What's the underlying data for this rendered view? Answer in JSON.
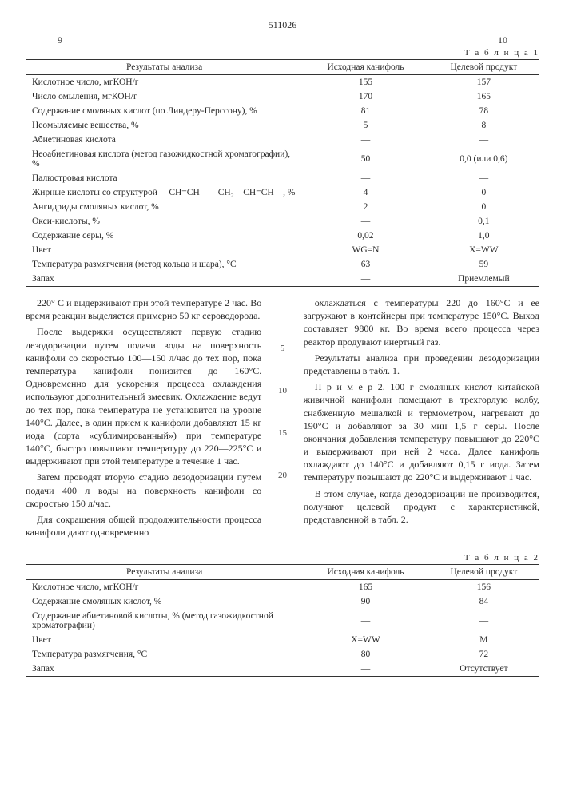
{
  "header": {
    "doc_number": "511026",
    "left_mark": "9",
    "right_mark": "10"
  },
  "table1": {
    "title": "Т а б л и ц а 1",
    "columns": [
      "Результаты анализа",
      "Исходная канифоль",
      "Целевой продукт"
    ],
    "rows": [
      [
        "Кислотное число, мгКОН/г",
        "155",
        "157"
      ],
      [
        "Число омыления, мгКОН/г",
        "170",
        "165"
      ],
      [
        "Содержание смоляных кислот (по Линдеру-Перссону), %",
        "81",
        "78"
      ],
      [
        "Неомыляемые вещества, %",
        "5",
        "8"
      ],
      [
        "Абиетиновая кислота",
        "—",
        "—"
      ],
      [
        "Неоабиетиновая кислота (метод газожидкостной хроматографии), %",
        "50",
        "0,0 (или 0,6)"
      ],
      [
        "Палюстровая кислота",
        "—",
        "—"
      ],
      [
        "Жирные кислоты со структурой —CH=CH——CH₂—CH=CH—, %",
        "4",
        "0"
      ],
      [
        "Ангидриды смоляных кислот, %",
        "2",
        "0"
      ],
      [
        "Окси-кислоты, %",
        "—",
        "0,1"
      ],
      [
        "Содержание серы, %",
        "0,02",
        "1,0"
      ],
      [
        "Цвет",
        "WG=N",
        "X=WW"
      ],
      [
        "Температура размягчения (метод кольца и шара), °С",
        "63",
        "59"
      ],
      [
        "Запах",
        "—",
        "Приемлемый"
      ]
    ]
  },
  "line_nums": [
    "5",
    "10",
    "15",
    "20"
  ],
  "left_col": {
    "p1": "220° С и выдерживают при этой температуре 2 час. Во время реакции выделяется примерно 50 кг сероводорода.",
    "p2": "После выдержки осуществляют первую стадию дезодоризации путем подачи воды на поверхность канифоли со скоростью 100—150 л/час до тех пор, пока температура канифоли понизится до 160°С. Одновременно для ускорения процесса охлаждения используют дополнительный змеевик. Охлаждение ведут до тех пор, пока температура не установится на уровне 140°С. Далее, в один прием к канифоли добавляют 15 кг иода (сорта «сублимированный») при температуре 140°С, быстро повышают температуру до 220—225°С и выдерживают при этой температуре в течение 1 час.",
    "p3": "Затем проводят вторую стадию дезодоризации путем подачи 400 л воды на поверхность канифоли со скоростью 150 л/час.",
    "p4": "Для сокращения общей продолжительности процесса канифоли дают одновременно"
  },
  "right_col": {
    "p1": "охлаждаться с температуры 220 до 160°С и ее загружают в контейнеры при температуре 150°С. Выход составляет 9800 кг. Во время всего процесса через реактор продувают инертный газ.",
    "p2": "Результаты анализа при проведении дезодоризации представлены в табл. 1.",
    "p3": "П р и м е р 2. 100 г смоляных кислот китайской живичной канифоли помещают в трехгорлую колбу, снабженную мешалкой и термометром, нагревают до 190°С и добавляют за 30 мин 1,5 г серы. После окончания добавления температуру повышают до 220°С и выдерживают при ней 2 часа. Далее канифоль охлаждают до 140°С и добавляют 0,15 г иода. Затем температуру повышают до 220°С и выдерживают 1 час.",
    "p4": "В этом случае, когда дезодоризации не производится, получают целевой продукт с характеристикой, представленной в табл. 2."
  },
  "table2": {
    "title": "Т а б л и ц а 2",
    "columns": [
      "Результаты анализа",
      "Исходная канифоль",
      "Целевой продукт"
    ],
    "rows": [
      [
        "Кислотное число, мгКОН/г",
        "165",
        "156"
      ],
      [
        "Содержание смоляных кислот, %",
        "90",
        "84"
      ],
      [
        "Содержание абиетиновой кислоты, % (метод газожидкостной хроматографии)",
        "—",
        "—"
      ],
      [
        "Цвет",
        "X=WW",
        "M"
      ],
      [
        "Температура размягчения, °С",
        "80",
        "72"
      ],
      [
        "Запах",
        "—",
        "Отсутствует"
      ]
    ]
  }
}
